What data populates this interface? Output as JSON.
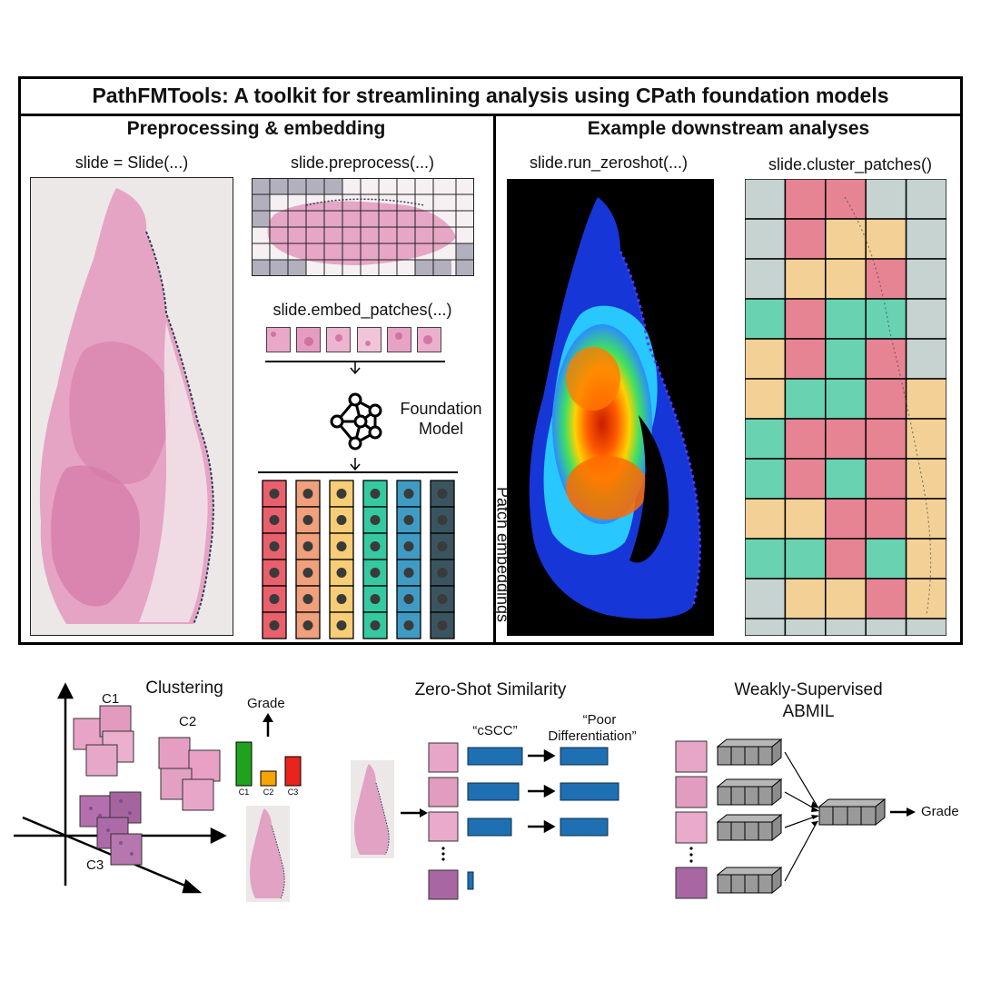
{
  "header": {
    "title": "PathFMTools: A toolkit for streamlining analysis using CPath foundation models"
  },
  "left_panel": {
    "title": "Preprocessing & embedding",
    "slide_code": "slide = Slide(...)",
    "preprocess_code": "slide.preprocess(...)",
    "embed_code": "slide.embed_patches(...)",
    "model_label": "Foundation Model",
    "embeddings_label": "Patch embeddings",
    "embedding_colors": [
      "#e8606b",
      "#f0a07b",
      "#f7cd76",
      "#36c9a0",
      "#3f9bc3",
      "#3b5560"
    ]
  },
  "right_panel": {
    "title": "Example downstream analyses",
    "zeroshot_code": "slide.run_zeroshot(...)",
    "cluster_code": "slide.cluster_patches()",
    "cluster_colors": [
      "#c3d1cf",
      "#e67c8c",
      "#f3cf8f",
      "#5ed0ac"
    ]
  },
  "bottom": {
    "clustering": {
      "title": "Clustering",
      "c1": "C1",
      "c2": "C2",
      "c3": "C3",
      "grade": "Grade",
      "bars": [
        {
          "label": "C1",
          "value": 3,
          "color": "#1fa31f"
        },
        {
          "label": "C2",
          "value": 1,
          "color": "#f5a500"
        },
        {
          "label": "C3",
          "value": 2,
          "color": "#e8241c"
        }
      ]
    },
    "zeroshot": {
      "title": "Zero-Shot Similarity",
      "prompt1": "“cSCC”",
      "prompt2_line1": "“Poor",
      "prompt2_line2": "Differentiation”",
      "bar_color": "#1f6fb3"
    },
    "abmil": {
      "title_line1": "Weakly-Supervised",
      "title_line2": "ABMIL",
      "output": "Grade"
    }
  }
}
